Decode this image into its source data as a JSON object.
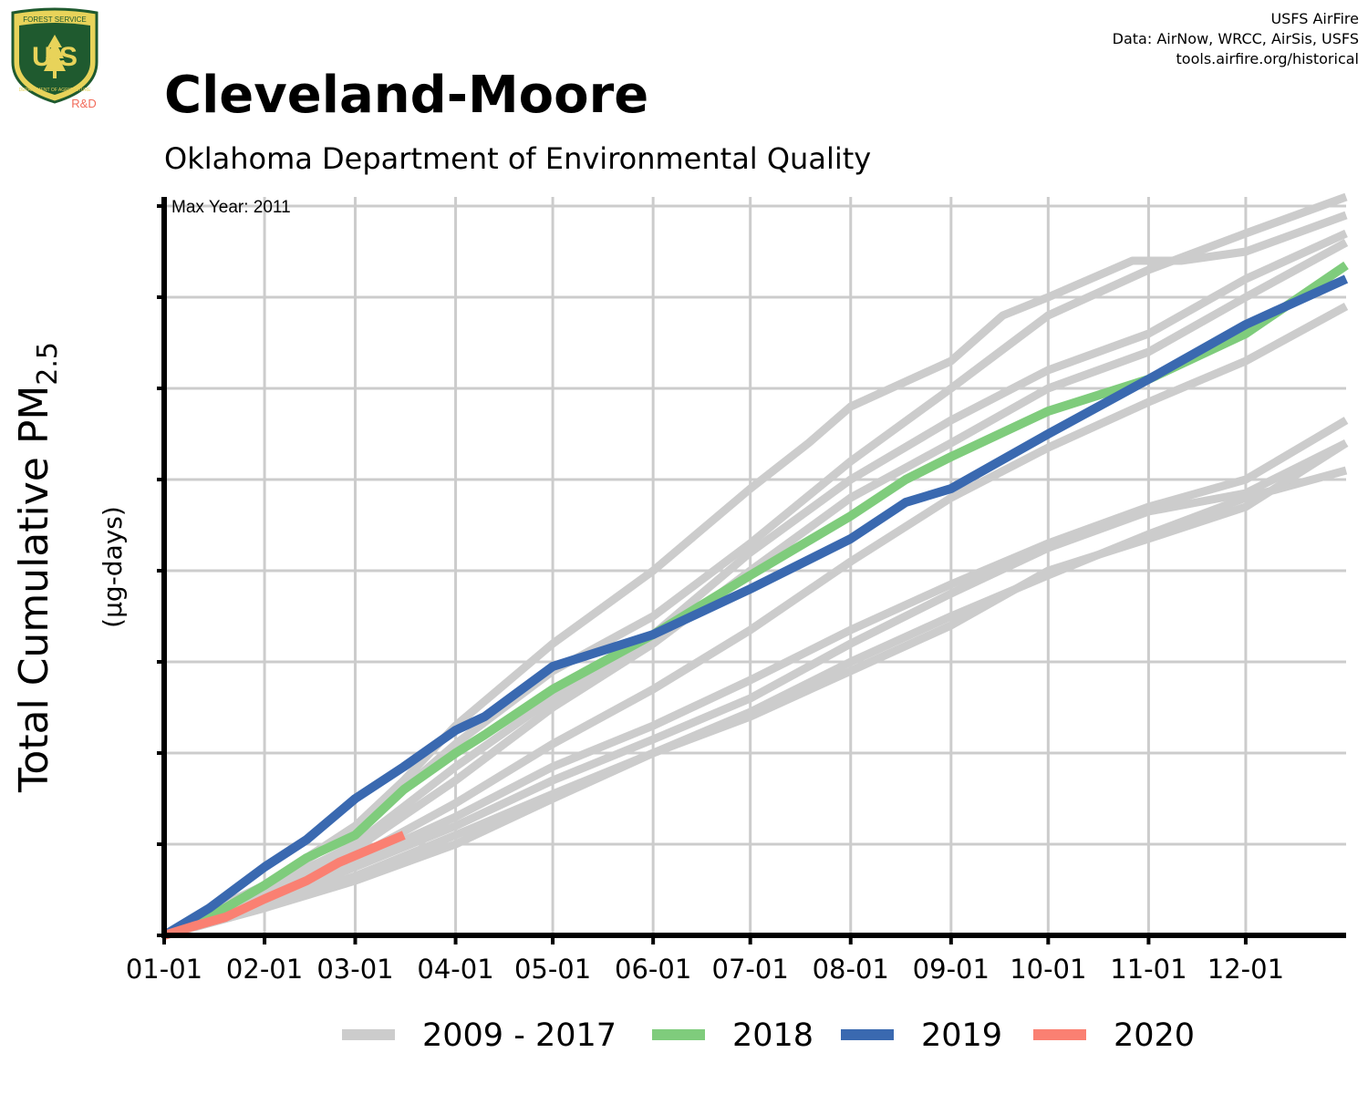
{
  "header": {
    "title": "Cleveland-Moore",
    "subtitle": "Oklahoma Department of Environmental Quality",
    "credits": [
      "USFS AirFire",
      "Data: AirNow, WRCC, AirSis, USFS",
      "tools.airfire.org/historical"
    ]
  },
  "logo": {
    "top_text": "FOREST SERVICE",
    "letters": "U S",
    "bottom_text": "DEPARTMENT OF AGRICULTURE",
    "tag": "R&D"
  },
  "colors": {
    "historical": "#cccccc",
    "y2018": "#7fcc7c",
    "y2019": "#3a69b0",
    "y2020": "#fa8072",
    "logo_green": "#1f5a2f",
    "logo_gold": "#e8d35a",
    "logo_red": "#f26b5a"
  },
  "chart_data": {
    "type": "line",
    "annotation": "Max Year: 2011",
    "ylabel_main": "Total Cumulative PM",
    "ylabel_sub": "2.5",
    "ylabel_units": "(µg-days)",
    "x_tick_labels": [
      "01-01",
      "02-01",
      "03-01",
      "04-01",
      "05-01",
      "06-01",
      "07-01",
      "08-01",
      "09-01",
      "10-01",
      "11-01",
      "12-01"
    ],
    "x_tick_days": [
      1,
      32,
      60,
      91,
      121,
      152,
      182,
      213,
      244,
      274,
      305,
      335
    ],
    "xlim": [
      1,
      366
    ],
    "ylim": [
      0,
      8
    ],
    "y_ticks": [
      0,
      1,
      2,
      3,
      4,
      5,
      6,
      7,
      8
    ],
    "grid": true,
    "legend": {
      "position": "bottom",
      "entries": [
        "2009 - 2017",
        "2018",
        "2019",
        "2020"
      ]
    },
    "series": [
      {
        "name": "2009 - 2017",
        "group": "historical",
        "x": [
          1,
          20,
          32,
          60,
          75,
          91,
          121,
          152,
          182,
          200,
          213,
          244,
          260,
          274,
          300,
          315,
          335,
          366
        ],
        "y": [
          0,
          0.35,
          0.55,
          1.2,
          1.7,
          2.3,
          3.2,
          4.0,
          4.9,
          5.4,
          5.8,
          6.3,
          6.8,
          7.0,
          7.4,
          7.4,
          7.5,
          7.9
        ]
      },
      {
        "name": "2009 - 2017",
        "group": "historical",
        "x": [
          1,
          32,
          60,
          91,
          121,
          152,
          182,
          213,
          244,
          274,
          305,
          335,
          366
        ],
        "y": [
          0,
          0.55,
          1.15,
          2.1,
          2.9,
          3.5,
          4.3,
          5.2,
          6.0,
          6.8,
          7.3,
          7.7,
          8.1
        ]
      },
      {
        "name": "2009 - 2017",
        "group": "historical",
        "x": [
          1,
          32,
          60,
          91,
          121,
          152,
          182,
          213,
          244,
          274,
          305,
          335,
          366
        ],
        "y": [
          0,
          0.5,
          1.0,
          1.85,
          2.6,
          3.3,
          4.2,
          5.0,
          5.65,
          6.2,
          6.6,
          7.2,
          7.7
        ]
      },
      {
        "name": "2009 - 2017",
        "group": "historical",
        "x": [
          1,
          32,
          60,
          91,
          121,
          152,
          182,
          213,
          244,
          274,
          305,
          335,
          366
        ],
        "y": [
          0,
          0.45,
          0.95,
          1.7,
          2.5,
          3.2,
          4.0,
          4.8,
          5.4,
          6.0,
          6.4,
          7.0,
          7.6
        ]
      },
      {
        "name": "2009 - 2017",
        "group": "historical",
        "x": [
          1,
          32,
          60,
          91,
          121,
          152,
          182,
          213,
          244,
          274,
          305,
          335,
          366
        ],
        "y": [
          0,
          0.4,
          0.85,
          1.45,
          2.1,
          2.7,
          3.35,
          4.1,
          4.8,
          5.35,
          5.85,
          6.3,
          6.9
        ]
      },
      {
        "name": "2009 - 2017",
        "group": "historical",
        "x": [
          1,
          32,
          60,
          91,
          121,
          152,
          182,
          213,
          244,
          274,
          305,
          335,
          366
        ],
        "y": [
          0,
          0.38,
          0.8,
          1.3,
          1.85,
          2.3,
          2.8,
          3.35,
          3.85,
          4.3,
          4.7,
          5.0,
          5.65
        ]
      },
      {
        "name": "2009 - 2017",
        "group": "historical",
        "x": [
          1,
          32,
          60,
          91,
          121,
          152,
          182,
          213,
          244,
          274,
          305,
          335,
          366
        ],
        "y": [
          0,
          0.35,
          0.75,
          1.2,
          1.7,
          2.15,
          2.6,
          3.2,
          3.75,
          4.25,
          4.65,
          4.85,
          5.4
        ]
      },
      {
        "name": "2009 - 2017",
        "group": "historical",
        "x": [
          1,
          32,
          60,
          91,
          121,
          152,
          182,
          213,
          244,
          274,
          305,
          335,
          366
        ],
        "y": [
          0,
          0.3,
          0.65,
          1.1,
          1.55,
          2.0,
          2.45,
          3.0,
          3.5,
          3.95,
          4.4,
          4.8,
          5.1
        ]
      },
      {
        "name": "2009 - 2017",
        "group": "historical",
        "x": [
          1,
          32,
          60,
          91,
          121,
          152,
          182,
          213,
          244,
          274,
          305,
          335,
          366
        ],
        "y": [
          0,
          0.3,
          0.6,
          1.0,
          1.5,
          2.0,
          2.4,
          2.9,
          3.4,
          4.0,
          4.35,
          4.7,
          5.4
        ]
      },
      {
        "name": "2018",
        "x": [
          1,
          15,
          32,
          45,
          60,
          75,
          91,
          100,
          121,
          152,
          182,
          213,
          230,
          244,
          274,
          305,
          335,
          366
        ],
        "y": [
          0,
          0.2,
          0.55,
          0.85,
          1.1,
          1.6,
          2.0,
          2.2,
          2.7,
          3.3,
          3.95,
          4.6,
          5.0,
          5.25,
          5.75,
          6.1,
          6.6,
          7.35
        ]
      },
      {
        "name": "2019",
        "x": [
          1,
          15,
          32,
          45,
          60,
          75,
          91,
          100,
          121,
          152,
          182,
          213,
          230,
          244,
          274,
          305,
          335,
          366
        ],
        "y": [
          0,
          0.3,
          0.75,
          1.05,
          1.5,
          1.85,
          2.25,
          2.4,
          2.95,
          3.3,
          3.8,
          4.35,
          4.75,
          4.9,
          5.5,
          6.1,
          6.7,
          7.2
        ]
      },
      {
        "name": "2020",
        "x": [
          1,
          10,
          20,
          32,
          45,
          55,
          65,
          75
        ],
        "y": [
          0,
          0.1,
          0.2,
          0.4,
          0.6,
          0.8,
          0.95,
          1.1
        ]
      }
    ]
  }
}
